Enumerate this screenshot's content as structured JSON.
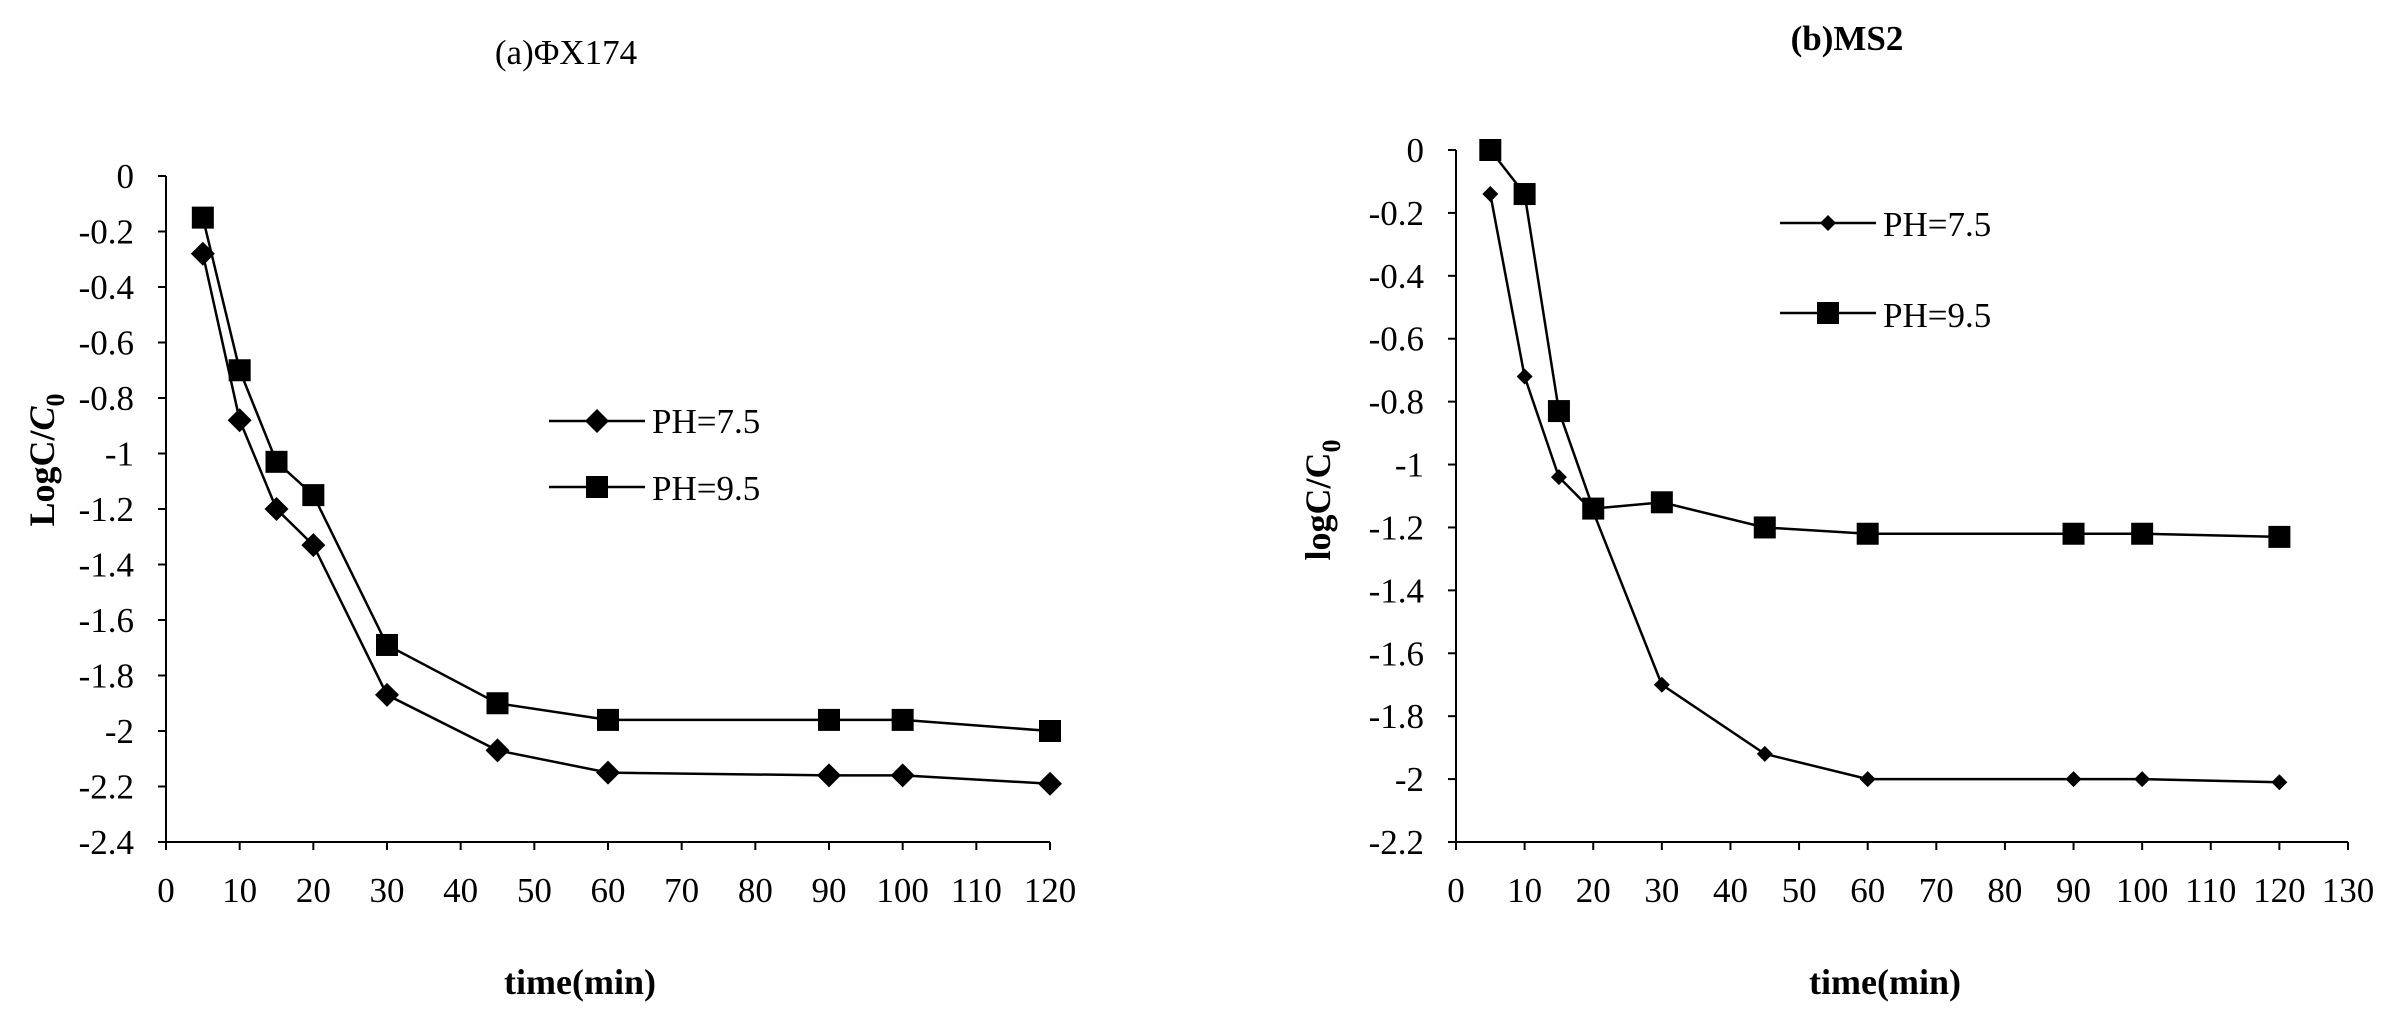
{
  "chart_data": [
    {
      "type": "line",
      "title": "(a)ΦX174",
      "xlabel": "time(min)",
      "ylabel_main": "LogC/",
      "ylabel_italic": "C",
      "ylabel_sub": "0",
      "xlim": [
        0,
        120
      ],
      "ylim": [
        -2.4,
        0
      ],
      "xticks": [
        "0",
        "10",
        "20",
        "30",
        "40",
        "50",
        "60",
        "70",
        "80",
        "90",
        "100",
        "110",
        "120"
      ],
      "yticks": [
        "0",
        "-0.2",
        "-0.4",
        "-0.6",
        "-0.8",
        "-1",
        "-1.2",
        "-1.4",
        "-1.6",
        "-1.8",
        "-2",
        "-2.2",
        "-2.4"
      ],
      "grid": false,
      "legend_position": "right-center",
      "series": [
        {
          "name": "PH=7.5",
          "marker": "diamond",
          "x": [
            5,
            10,
            15,
            20,
            30,
            45,
            60,
            90,
            100,
            120
          ],
          "y": [
            -0.28,
            -0.88,
            -1.2,
            -1.33,
            -1.87,
            -2.07,
            -2.15,
            -2.16,
            -2.16,
            -2.19
          ]
        },
        {
          "name": "PH=9.5",
          "marker": "square",
          "x": [
            5,
            10,
            15,
            20,
            30,
            45,
            60,
            90,
            100,
            120
          ],
          "y": [
            -0.15,
            -0.7,
            -1.03,
            -1.15,
            -1.69,
            -1.9,
            -1.96,
            -1.96,
            -1.96,
            -2.0
          ]
        }
      ]
    },
    {
      "type": "line",
      "title": "(b)MS2",
      "xlabel": "time(min)",
      "ylabel_main": "logC/C",
      "ylabel_italic": "",
      "ylabel_sub": "0",
      "xlim": [
        0,
        130
      ],
      "ylim": [
        -2.2,
        0
      ],
      "xticks": [
        "0",
        "10",
        "20",
        "30",
        "40",
        "50",
        "60",
        "70",
        "80",
        "90",
        "100",
        "110",
        "120",
        "130"
      ],
      "yticks": [
        "0",
        "-0.2",
        "-0.4",
        "-0.6",
        "-0.8",
        "-1",
        "-1.2",
        "-1.4",
        "-1.6",
        "-1.8",
        "-2",
        "-2.2"
      ],
      "grid": false,
      "legend_position": "top-left",
      "series": [
        {
          "name": "PH=7.5",
          "marker": "small-diamond",
          "x": [
            5,
            10,
            15,
            20,
            30,
            45,
            60,
            90,
            100,
            120
          ],
          "y": [
            -0.14,
            -0.72,
            -1.04,
            -1.15,
            -1.7,
            -1.92,
            -2.0,
            -2.0,
            -2.0,
            -2.01
          ]
        },
        {
          "name": "PH=9.5",
          "marker": "square",
          "x": [
            5,
            10,
            15,
            20,
            30,
            45,
            60,
            90,
            100,
            120
          ],
          "y": [
            0,
            -0.14,
            -0.83,
            -1.14,
            -1.12,
            -1.2,
            -1.22,
            -1.22,
            -1.22,
            -1.23
          ]
        }
      ]
    }
  ]
}
